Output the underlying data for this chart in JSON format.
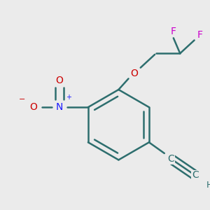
{
  "bg_color": "#ebebeb",
  "bond_color": "#2d6e6e",
  "bond_width": 1.8,
  "atom_colors": {
    "C": "#2d6e6e",
    "H": "#2d6e6e",
    "O": "#cc0000",
    "N": "#1a1aff",
    "F": "#cc00cc",
    "O_minus": "#cc0000"
  },
  "figsize": [
    3.0,
    3.0
  ],
  "dpi": 100
}
